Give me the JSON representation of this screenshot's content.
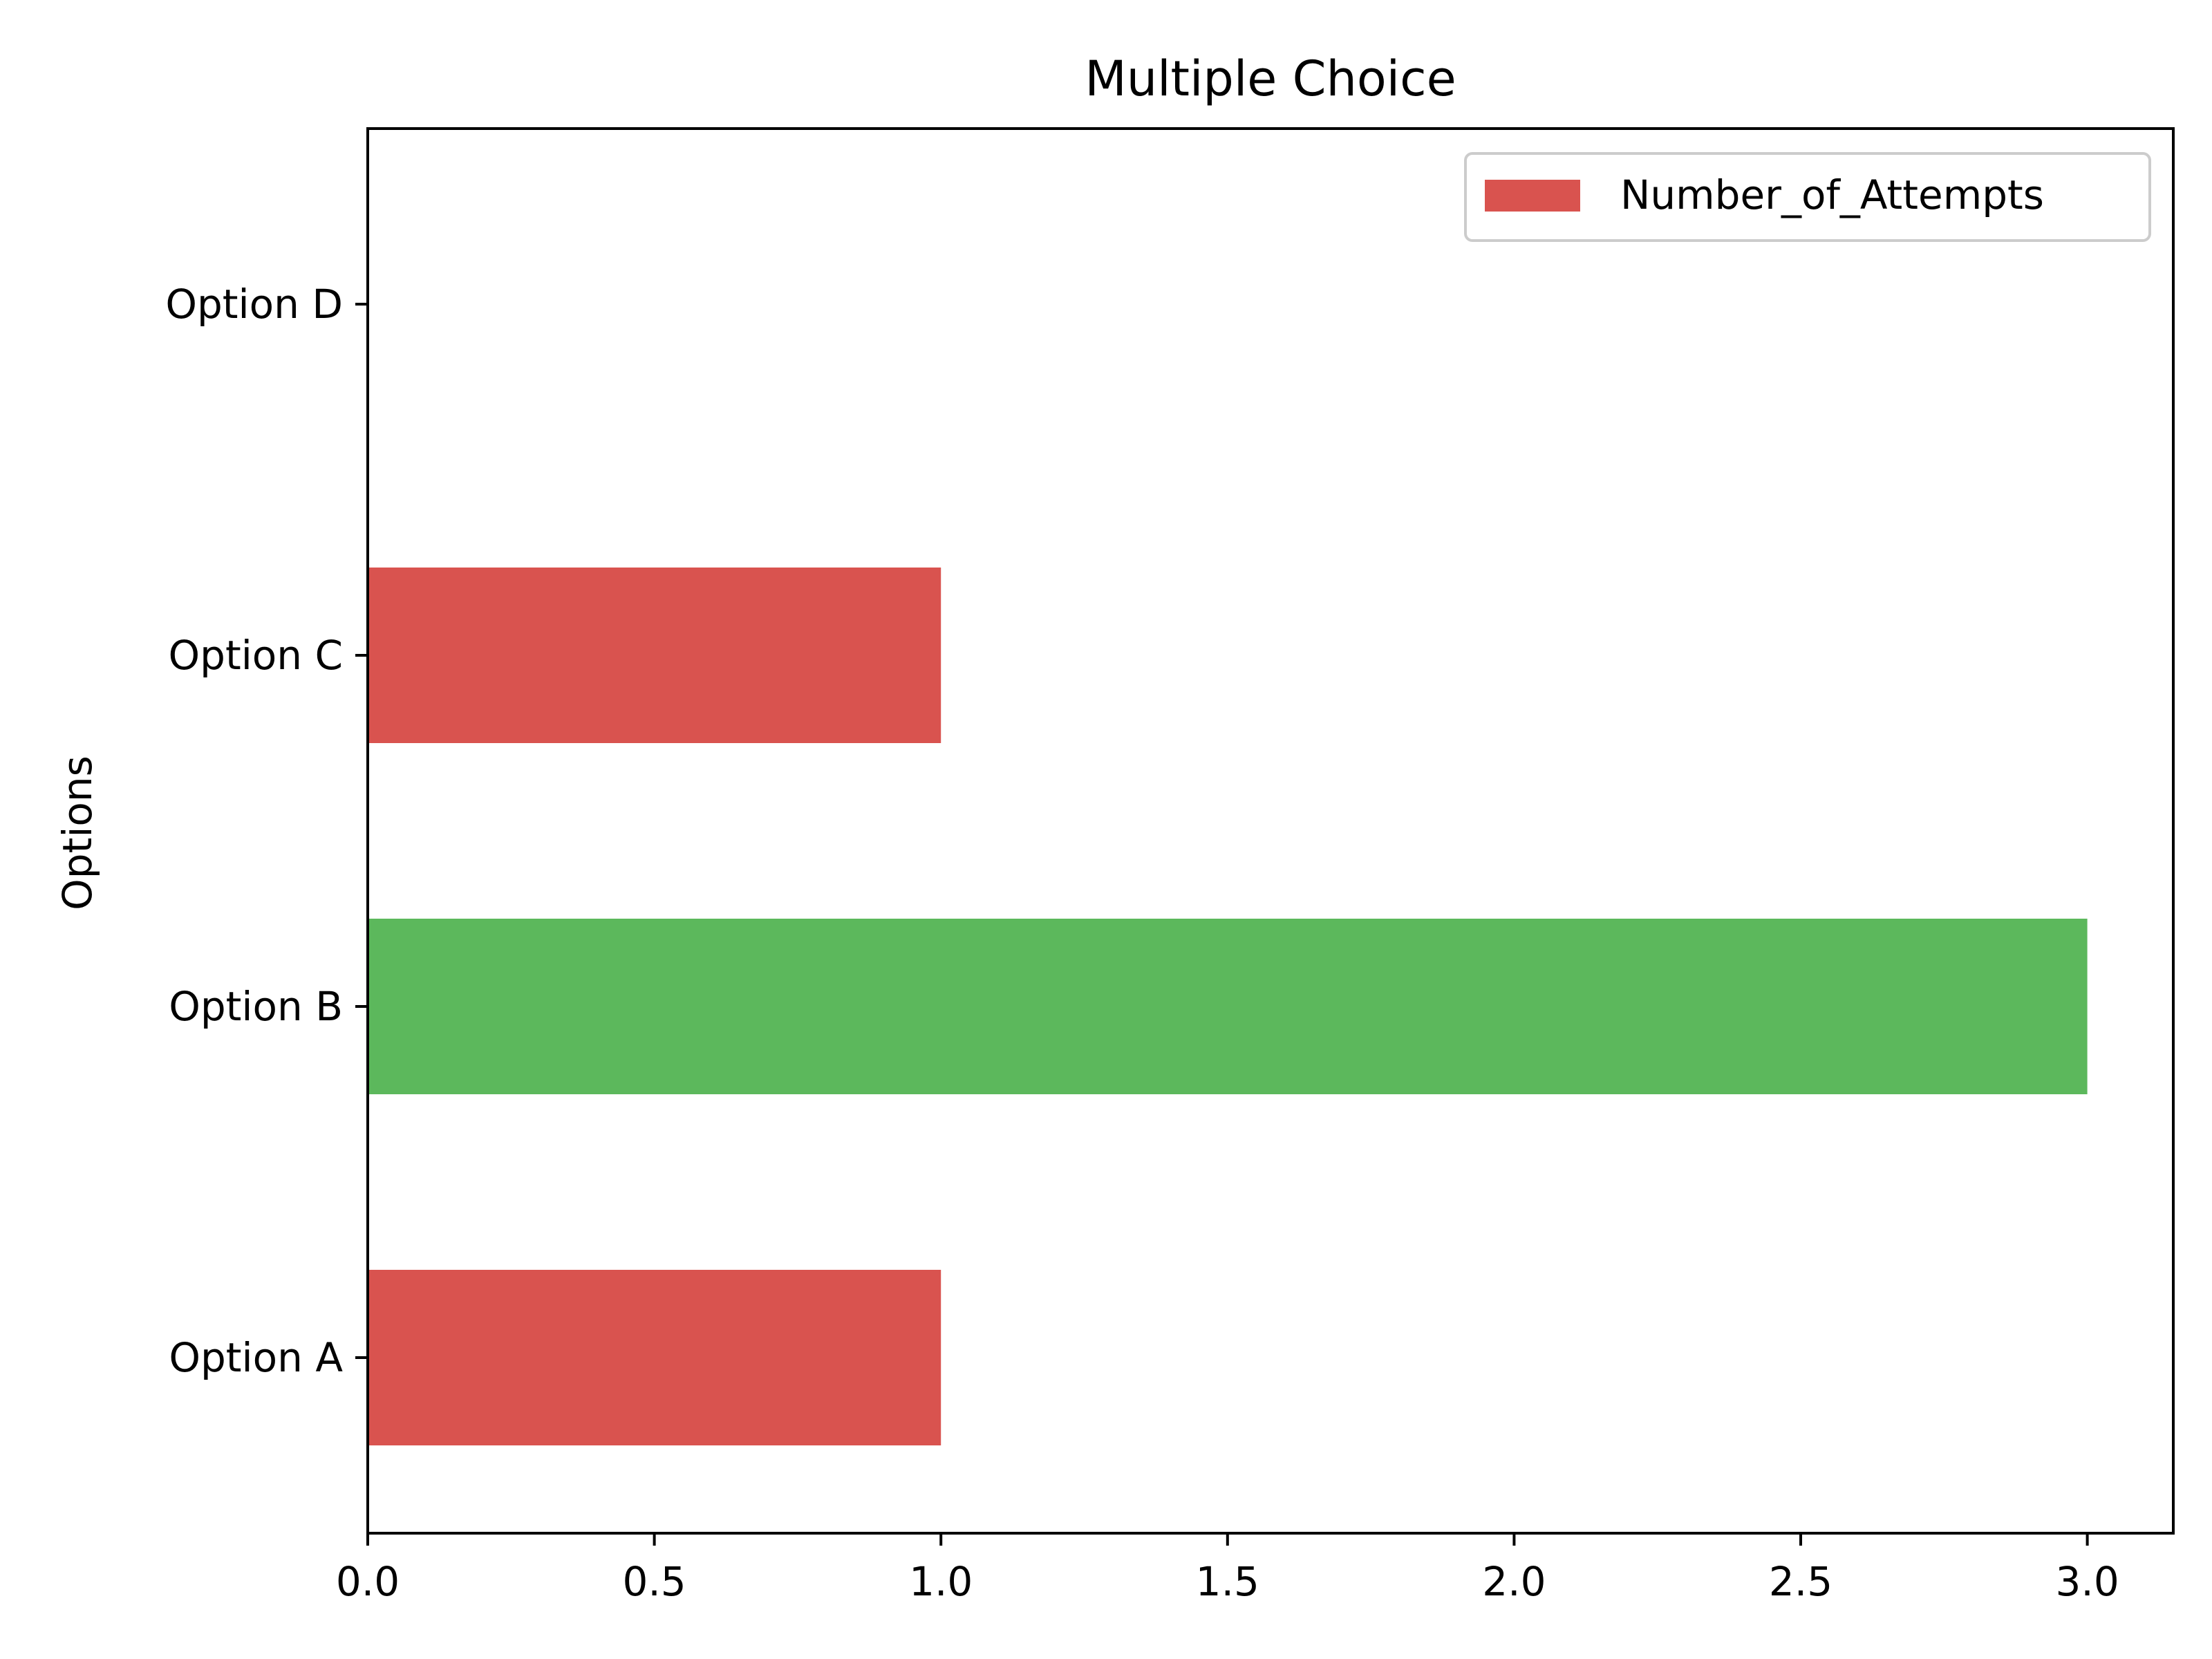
{
  "chart_data": {
    "type": "bar",
    "orientation": "horizontal",
    "title": "Multiple Choice",
    "xlabel": "",
    "ylabel": "Options",
    "categories": [
      "Option A",
      "Option B",
      "Option C",
      "Option D"
    ],
    "series": [
      {
        "name": "Number_of_Attempts",
        "values": [
          1,
          3,
          1,
          0
        ],
        "bar_colors": [
          "#d9534f",
          "#5cb85c",
          "#d9534f",
          "#d9534f"
        ]
      }
    ],
    "xlim": [
      0,
      3.15
    ],
    "xticks": [
      "0.0",
      "0.5",
      "1.0",
      "1.5",
      "2.0",
      "2.5",
      "3.0"
    ],
    "xtick_values": [
      0,
      0.5,
      1.0,
      1.5,
      2.0,
      2.5,
      3.0
    ],
    "grid": false,
    "legend": {
      "placement": "upper-right",
      "entries": [
        {
          "label": "Number_of_Attempts",
          "color": "#d9534f"
        }
      ]
    }
  }
}
